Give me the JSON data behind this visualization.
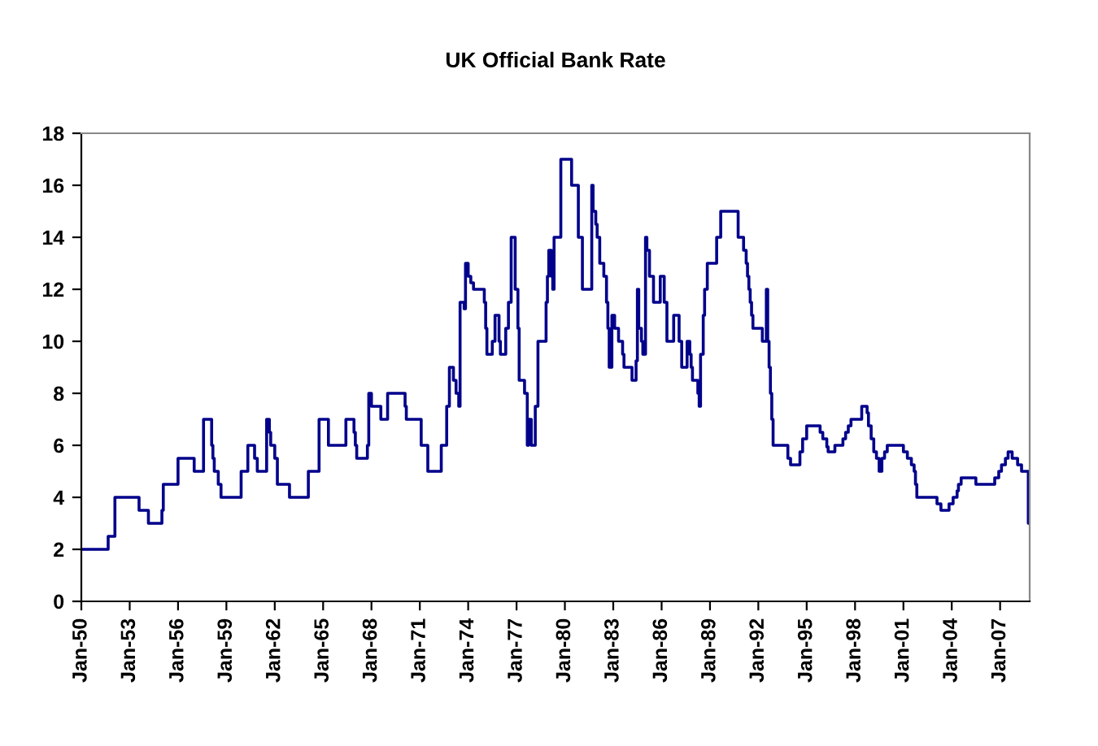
{
  "chart_data": {
    "type": "step",
    "title": "UK Official Bank Rate",
    "x": [
      "1950-01",
      "1951-09",
      "1952-02",
      "1953-08",
      "1954-03",
      "1955-01",
      "1955-02",
      "1956-01",
      "1957-01",
      "1957-08",
      "1958-02",
      "1958-03",
      "1958-04",
      "1958-07",
      "1958-09",
      "1959-12",
      "1960-05",
      "1960-10",
      "1960-12",
      "1961-07",
      "1961-09",
      "1961-10",
      "1962-01",
      "1962-03",
      "1962-12",
      "1964-02",
      "1964-10",
      "1965-05",
      "1966-06",
      "1966-12",
      "1967-01",
      "1967-02",
      "1967-04",
      "1967-10",
      "1967-11",
      "1968-01",
      "1968-08",
      "1969-01",
      "1970-02",
      "1970-03",
      "1971-02",
      "1971-07",
      "1972-05",
      "1972-09",
      "1972-11",
      "1973-02",
      "1973-04",
      "1973-06",
      "1973-07",
      "1973-10",
      "1973-11",
      "1974-01",
      "1974-03",
      "1974-05",
      "1975-01",
      "1975-02",
      "1975-03",
      "1975-07",
      "1975-09",
      "1975-12",
      "1976-01",
      "1976-05",
      "1976-07",
      "1976-09",
      "1976-12",
      "1977-02",
      "1977-03",
      "1977-07",
      "1977-09",
      "1977-10",
      "1977-12",
      "1978-03",
      "1978-05",
      "1978-11",
      "1978-12",
      "1979-01",
      "1979-03",
      "1979-04",
      "1979-05",
      "1979-10",
      "1980-06",
      "1980-11",
      "1981-02",
      "1981-09",
      "1981-10",
      "1981-12",
      "1982-01",
      "1982-03",
      "1982-06",
      "1982-08",
      "1982-09",
      "1982-10",
      "1982-12",
      "1983-02",
      "1983-05",
      "1983-08",
      "1983-09",
      "1984-03",
      "1984-06",
      "1984-07",
      "1984-08",
      "1984-10",
      "1984-11",
      "1985-01",
      "1985-02",
      "1985-04",
      "1985-07",
      "1985-12",
      "1986-03",
      "1986-05",
      "1986-10",
      "1987-02",
      "1987-04",
      "1987-08",
      "1987-10",
      "1987-11",
      "1987-12",
      "1988-04",
      "1988-05",
      "1988-06",
      "1988-08",
      "1988-09",
      "1988-11",
      "1989-06",
      "1989-09",
      "1990-10",
      "1991-02",
      "1991-04",
      "1991-05",
      "1991-06",
      "1991-07",
      "1991-08",
      "1991-09",
      "1992-04",
      "1992-07",
      "1992-08",
      "1992-09",
      "1992-10",
      "1992-11",
      "1992-12",
      "1993-11",
      "1994-01",
      "1994-08",
      "1994-10",
      "1995-01",
      "1995-11",
      "1996-01",
      "1996-04",
      "1996-05",
      "1996-10",
      "1997-04",
      "1997-06",
      "1997-08",
      "1997-10",
      "1998-06",
      "1998-10",
      "1998-11",
      "1999-01",
      "1999-03",
      "1999-05",
      "1999-07",
      "1999-09",
      "1999-11",
      "2000-01",
      "2001-01",
      "2001-04",
      "2001-07",
      "2001-09",
      "2001-10",
      "2001-11",
      "2003-02",
      "2003-05",
      "2003-11",
      "2004-02",
      "2004-05",
      "2004-06",
      "2004-08",
      "2005-07",
      "2006-09",
      "2006-12",
      "2007-02",
      "2007-05",
      "2007-07",
      "2007-10",
      "2008-02",
      "2008-05",
      "2008-10",
      "2008-11"
    ],
    "values": [
      2,
      2.5,
      4,
      3.5,
      3,
      3.5,
      4.5,
      5.5,
      5,
      7,
      6,
      5.5,
      5,
      4.5,
      4,
      5,
      6,
      5.5,
      5,
      7,
      6.5,
      6,
      5.5,
      4.5,
      4,
      5,
      7,
      6,
      7,
      6.5,
      6,
      5.5,
      5.5,
      6,
      8,
      7.5,
      7,
      8,
      7.5,
      7,
      6,
      5,
      6,
      7.5,
      9,
      8.5,
      8,
      7.5,
      11.5,
      11.25,
      13,
      12.5,
      12.25,
      12,
      11.5,
      10.5,
      9.5,
      10,
      11,
      10,
      9.5,
      10.5,
      11.5,
      14,
      12,
      10.5,
      8.5,
      8,
      6,
      7,
      6,
      7.5,
      10,
      11.5,
      12.5,
      13.5,
      12.5,
      12,
      14,
      17,
      16,
      14,
      12,
      16,
      15,
      14.5,
      14,
      13,
      12.5,
      11.5,
      10.5,
      9,
      11,
      10.5,
      10,
      9.5,
      9,
      8.5,
      9.25,
      12,
      10.5,
      10,
      9.5,
      14,
      13.5,
      12.5,
      11.5,
      12.5,
      11.5,
      10,
      11,
      10,
      9,
      10,
      9.5,
      9,
      8.5,
      8,
      7.5,
      9.5,
      11,
      12,
      13,
      14,
      15,
      14,
      13.5,
      13,
      12.5,
      12,
      11.5,
      11,
      10.5,
      10,
      12,
      10,
      9,
      8,
      7,
      6,
      5.5,
      5.25,
      5.75,
      6.25,
      6.75,
      6.5,
      6.25,
      5.94,
      5.75,
      6,
      6.25,
      6.5,
      6.75,
      7,
      7.5,
      7.25,
      6.75,
      6.25,
      5.75,
      5.5,
      5,
      5.5,
      5.75,
      6,
      5.75,
      5.5,
      5.25,
      5,
      4.5,
      4,
      3.75,
      3.5,
      3.75,
      4,
      4.25,
      4.5,
      4.75,
      4.5,
      4.75,
      5,
      5.25,
      5.5,
      5.75,
      5.5,
      5.25,
      5,
      3,
      3
    ],
    "color": "#00008b",
    "xlim": [
      "1950-01",
      "2008-11"
    ],
    "xticks": [
      {
        "value": "1950-01",
        "label": "Jan-50"
      },
      {
        "value": "1953-01",
        "label": "Jan-53"
      },
      {
        "value": "1956-01",
        "label": "Jan-56"
      },
      {
        "value": "1959-01",
        "label": "Jan-59"
      },
      {
        "value": "1962-01",
        "label": "Jan-62"
      },
      {
        "value": "1965-01",
        "label": "Jan-65"
      },
      {
        "value": "1968-01",
        "label": "Jan-68"
      },
      {
        "value": "1971-01",
        "label": "Jan-71"
      },
      {
        "value": "1974-01",
        "label": "Jan-74"
      },
      {
        "value": "1977-01",
        "label": "Jan-77"
      },
      {
        "value": "1980-01",
        "label": "Jan-80"
      },
      {
        "value": "1983-01",
        "label": "Jan-83"
      },
      {
        "value": "1986-01",
        "label": "Jan-86"
      },
      {
        "value": "1989-01",
        "label": "Jan-89"
      },
      {
        "value": "1992-01",
        "label": "Jan-92"
      },
      {
        "value": "1995-01",
        "label": "Jan-95"
      },
      {
        "value": "1998-01",
        "label": "Jan-98"
      },
      {
        "value": "2001-01",
        "label": "Jan-01"
      },
      {
        "value": "2004-01",
        "label": "Jan-04"
      },
      {
        "value": "2007-01",
        "label": "Jan-07"
      }
    ],
    "ylim": [
      0,
      18
    ],
    "yticks": [
      0,
      2,
      4,
      6,
      8,
      10,
      12,
      14,
      16,
      18
    ],
    "line_style": "solid"
  }
}
